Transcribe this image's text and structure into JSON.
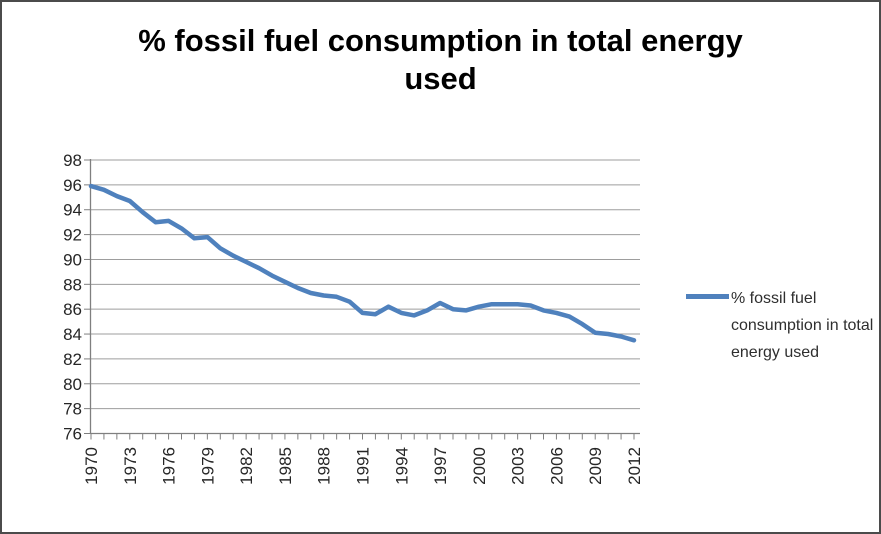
{
  "window": {
    "background": "#ffffff",
    "border_color": "#4b4b4b"
  },
  "chart_data": {
    "type": "line",
    "title": "% fossil fuel consumption in total energy used",
    "title_lines": [
      "% fossil fuel consumption in total energy",
      "used"
    ],
    "x": [
      1970,
      1971,
      1972,
      1973,
      1974,
      1975,
      1976,
      1977,
      1978,
      1979,
      1980,
      1981,
      1982,
      1983,
      1984,
      1985,
      1986,
      1987,
      1988,
      1989,
      1990,
      1991,
      1992,
      1993,
      1994,
      1995,
      1996,
      1997,
      1998,
      1999,
      2000,
      2001,
      2002,
      2003,
      2004,
      2005,
      2006,
      2007,
      2008,
      2009,
      2010,
      2011,
      2012
    ],
    "series": [
      {
        "name": "% fossil fuel consumption in total energy used",
        "color": "#4F81BD",
        "values": [
          95.9,
          95.6,
          95.1,
          94.7,
          93.8,
          93.0,
          93.1,
          92.5,
          91.7,
          91.8,
          90.9,
          90.3,
          89.8,
          89.3,
          88.7,
          88.2,
          87.7,
          87.3,
          87.1,
          87.0,
          86.6,
          85.7,
          85.6,
          86.2,
          85.7,
          85.5,
          85.9,
          86.5,
          86.0,
          85.9,
          86.2,
          86.4,
          86.4,
          86.4,
          86.3,
          85.9,
          85.7,
          85.4,
          84.8,
          84.1,
          84.0,
          83.8,
          83.5
        ]
      }
    ],
    "ylim": [
      76,
      98
    ],
    "ytick_step": 2,
    "ytick_labels": [
      "76",
      "78",
      "80",
      "82",
      "84",
      "86",
      "88",
      "90",
      "92",
      "94",
      "96",
      "98"
    ],
    "xtick_label_every": 3,
    "xtick_labels": [
      "1970",
      "1973",
      "1976",
      "1979",
      "1982",
      "1985",
      "1988",
      "1991",
      "1994",
      "1997",
      "2000",
      "2003",
      "2006",
      "2009",
      "2012"
    ],
    "grid": true,
    "legend_position": "right",
    "legend_label": "% fossil fuel consumption in total energy used",
    "line_width": 4.5,
    "grid_color": "#9d9d9d",
    "axis_color": "#7f7f7f",
    "tick_label_color": "#262626",
    "xlabel": "",
    "ylabel": ""
  }
}
